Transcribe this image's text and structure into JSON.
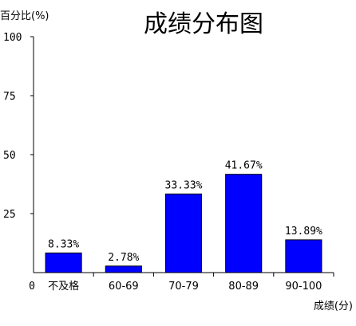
{
  "chart_data": {
    "type": "bar",
    "title": "成绩分布图",
    "ylabel": "百分比(%)",
    "xlabel": "成绩(分)",
    "origin_label": "0",
    "ylim": [
      0,
      100
    ],
    "yticks": [
      0,
      25,
      50,
      75,
      100
    ],
    "categories": [
      "不及格",
      "60-69",
      "70-79",
      "80-89",
      "90-100"
    ],
    "values": [
      8.33,
      2.78,
      33.33,
      41.67,
      13.89
    ],
    "data_labels": [
      "8.33%",
      "2.78%",
      "33.33%",
      "41.67%",
      "13.89%"
    ],
    "bar_color": "#0000ff",
    "grid": false,
    "legend": "none"
  }
}
